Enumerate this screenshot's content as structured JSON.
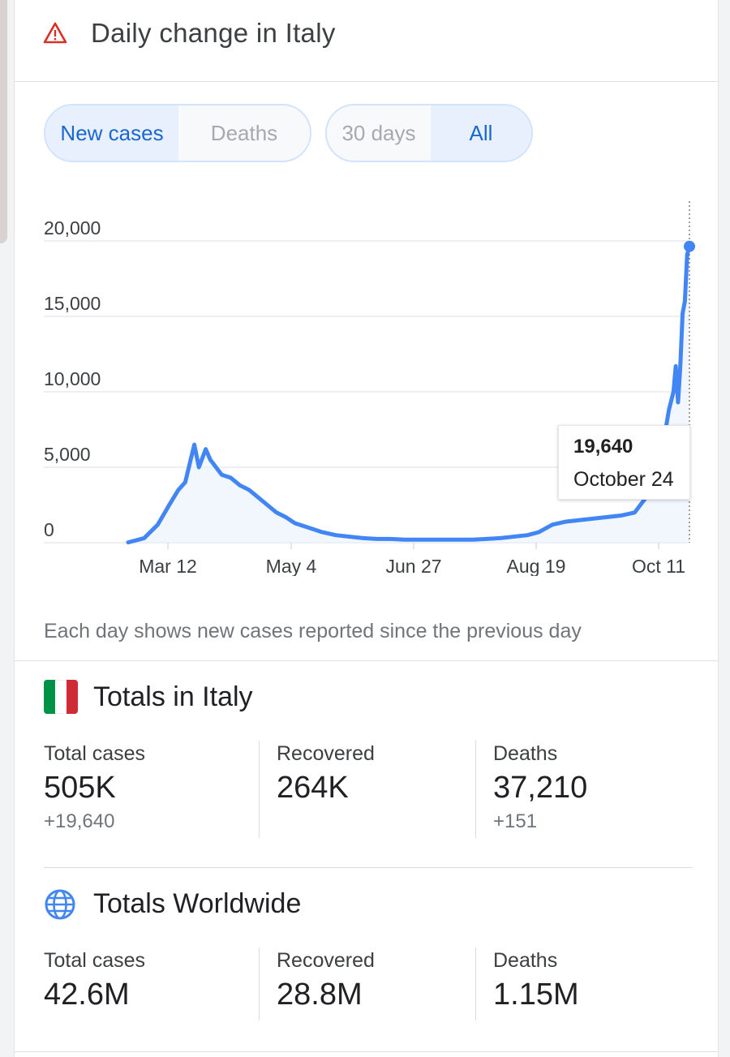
{
  "header": {
    "title": "Daily change in Italy",
    "icon": "warning-icon"
  },
  "metric_toggle": {
    "options": [
      "New cases",
      "Deaths"
    ],
    "selected": "New cases"
  },
  "range_toggle": {
    "options": [
      "30 days",
      "All"
    ],
    "selected": "All"
  },
  "chart_data": {
    "type": "line",
    "title": "",
    "xlabel": "",
    "ylabel": "",
    "y_ticks": [
      "20,000",
      "15,000",
      "10,000",
      "5,000",
      "0"
    ],
    "x_ticks": [
      "Mar 12",
      "May 4",
      "Jun 27",
      "Aug 19",
      "Oct 11"
    ],
    "ylim": [
      0,
      20000
    ],
    "grid": true,
    "color": "#4285f4",
    "series": [
      {
        "x": [
          "Feb 21",
          "Feb 28",
          "Mar 5",
          "Mar 10",
          "Mar 14",
          "Mar 17",
          "Mar 21",
          "Mar 23",
          "Mar 26",
          "Mar 28",
          "Apr 2",
          "Apr 6",
          "Apr 10",
          "Apr 14",
          "Apr 18",
          "Apr 22",
          "Apr 26",
          "Apr 30",
          "May 4",
          "May 10",
          "May 16",
          "May 22",
          "May 28",
          "Jun 3",
          "Jun 9",
          "Jun 15",
          "Jun 21",
          "Jun 27",
          "Jul 3",
          "Jul 9",
          "Jul 15",
          "Jul 21",
          "Jul 27",
          "Aug 2",
          "Aug 8",
          "Aug 14",
          "Aug 19",
          "Aug 25",
          "Aug 31",
          "Sep 6",
          "Sep 12",
          "Sep 18",
          "Sep 24",
          "Sep 30",
          "Oct 4",
          "Oct 8",
          "Oct 11",
          "Oct 13",
          "Oct 15",
          "Oct 17",
          "Oct 18",
          "Oct 19",
          "Oct 20",
          "Oct 21",
          "Oct 22",
          "Oct 23",
          "Oct 24"
        ],
        "values": [
          20,
          300,
          1200,
          2500,
          3500,
          4000,
          6500,
          5000,
          6200,
          5500,
          4500,
          4300,
          3800,
          3500,
          3000,
          2500,
          2000,
          1700,
          1300,
          1000,
          700,
          500,
          400,
          300,
          250,
          250,
          200,
          200,
          200,
          200,
          200,
          200,
          250,
          300,
          400,
          500,
          700,
          1200,
          1400,
          1500,
          1600,
          1700,
          1800,
          2000,
          2800,
          3700,
          5700,
          7000,
          8800,
          10000,
          11700,
          9300,
          11700,
          15200,
          16000,
          19100,
          19640
        ]
      }
    ],
    "highlight": {
      "value": "19,640",
      "date": "October 24"
    }
  },
  "note": "Each day shows new cases reported since the previous day",
  "italy": {
    "title": "Totals in Italy",
    "flag_colors": [
      "#009246",
      "#ffffff",
      "#ce2b37"
    ],
    "stats": [
      {
        "label": "Total cases",
        "value": "505K",
        "delta": "+19,640"
      },
      {
        "label": "Recovered",
        "value": "264K",
        "delta": ""
      },
      {
        "label": "Deaths",
        "value": "37,210",
        "delta": "+151"
      }
    ]
  },
  "world": {
    "title": "Totals Worldwide",
    "icon": "globe-icon",
    "stats": [
      {
        "label": "Total cases",
        "value": "42.6M"
      },
      {
        "label": "Recovered",
        "value": "28.8M"
      },
      {
        "label": "Deaths",
        "value": "1.15M"
      }
    ]
  }
}
